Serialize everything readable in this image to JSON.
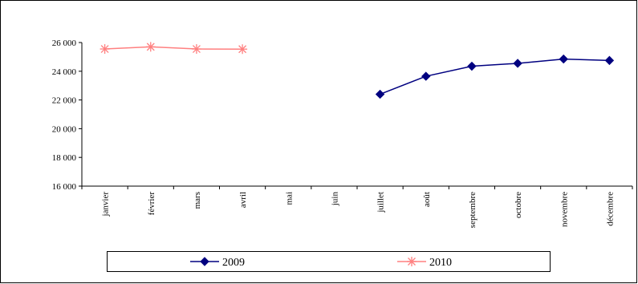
{
  "chart_data": {
    "type": "line",
    "title": "",
    "xlabel": "",
    "ylabel": "",
    "categories": [
      "janvier",
      "février",
      "mars",
      "avril",
      "mai",
      "juin",
      "juillet",
      "août",
      "septembre",
      "octobre",
      "novembre",
      "décembre"
    ],
    "ylim": [
      16000,
      26000
    ],
    "yticks": [
      16000,
      18000,
      20000,
      22000,
      24000,
      26000
    ],
    "ytick_labels": [
      "16 000",
      "18 000",
      "20 000",
      "22 000",
      "24 000",
      "26 000"
    ],
    "grid": false,
    "legend_position": "bottom",
    "series": [
      {
        "name": "2009",
        "color": "#000080",
        "marker": "diamond",
        "values": [
          null,
          null,
          null,
          null,
          null,
          null,
          22400,
          23650,
          24350,
          24550,
          24850,
          24750
        ]
      },
      {
        "name": "2010",
        "color": "#FF8080",
        "marker": "asterisk",
        "values": [
          25550,
          25700,
          25550,
          25540,
          null,
          null,
          null,
          null,
          null,
          null,
          null,
          null
        ]
      }
    ]
  }
}
